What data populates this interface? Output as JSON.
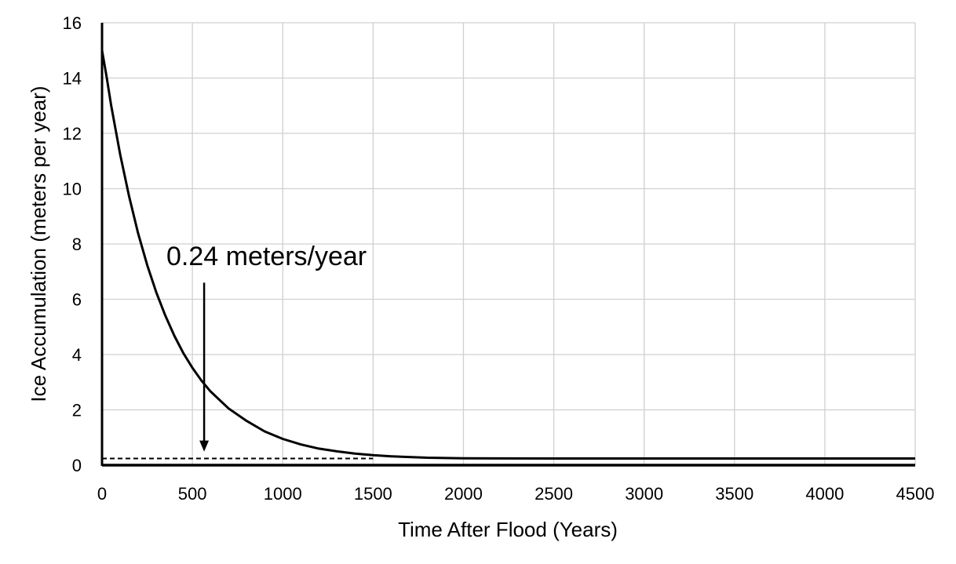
{
  "chart_data": {
    "type": "line",
    "title": "",
    "xlabel": "Time After Flood (Years)",
    "ylabel": "Ice Accumulation (meters per year)",
    "xlim": [
      0,
      4500
    ],
    "ylim": [
      0,
      16
    ],
    "x_ticks": [
      0,
      500,
      1000,
      1500,
      2000,
      2500,
      3000,
      3500,
      4000,
      4500
    ],
    "y_ticks": [
      0,
      2,
      4,
      6,
      8,
      10,
      12,
      14,
      16
    ],
    "grid": true,
    "legend": "none",
    "series": [
      {
        "style": "solid",
        "color": "#000000",
        "x": [
          0,
          25,
          50,
          100,
          150,
          200,
          250,
          300,
          350,
          400,
          450,
          500,
          550,
          600,
          700,
          800,
          900,
          1000,
          1100,
          1200,
          1300,
          1400,
          1500,
          1600,
          1800,
          2000,
          2500,
          3000,
          3500,
          4000,
          4500
        ],
        "y": [
          15.0,
          14.05,
          13.03,
          11.25,
          9.72,
          8.38,
          7.23,
          6.25,
          5.41,
          4.68,
          4.05,
          3.52,
          3.06,
          2.67,
          2.05,
          1.6,
          1.22,
          0.95,
          0.75,
          0.6,
          0.5,
          0.42,
          0.36,
          0.32,
          0.27,
          0.25,
          0.24,
          0.24,
          0.24,
          0.24,
          0.24
        ]
      },
      {
        "style": "dashed",
        "color": "#000000",
        "x": [
          0,
          1500
        ],
        "y": [
          0.24,
          0.24
        ]
      }
    ],
    "annotations": [
      {
        "text": "0.24 meters/year",
        "arrow_x": 565,
        "arrow_from_y": 6.6,
        "arrow_to_y": 0.55
      }
    ]
  }
}
